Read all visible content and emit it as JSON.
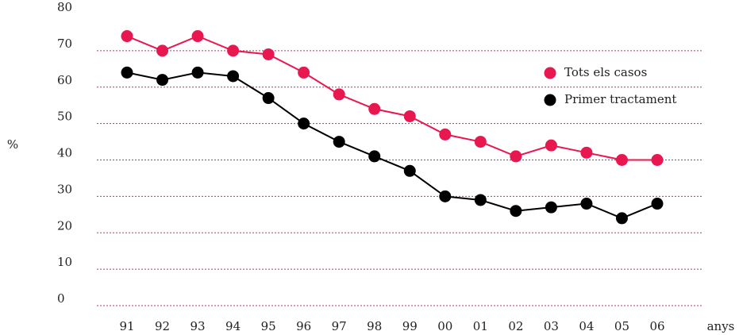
{
  "chart_data": {
    "type": "line",
    "categories": [
      "91",
      "92",
      "93",
      "94",
      "95",
      "96",
      "97",
      "98",
      "99",
      "00",
      "01",
      "02",
      "03",
      "04",
      "05",
      "06"
    ],
    "series": [
      {
        "name": "Tots els casos",
        "color": "#e8174f",
        "values": [
          74,
          70,
          74,
          70,
          69,
          64,
          58,
          54,
          52,
          47,
          45,
          41,
          44,
          42,
          40,
          40
        ]
      },
      {
        "name": "Primer tractament",
        "color": "#000000",
        "values": [
          64,
          62,
          64,
          63,
          57,
          50,
          45,
          41,
          37,
          30,
          29,
          26,
          27,
          28,
          24,
          28
        ]
      }
    ],
    "ylim": [
      0,
      80
    ],
    "yticks": [
      0,
      10,
      20,
      30,
      40,
      50,
      60,
      70,
      80
    ],
    "ylabel": "%",
    "xlabel": "anys",
    "grid": true,
    "legend": "upper right"
  }
}
